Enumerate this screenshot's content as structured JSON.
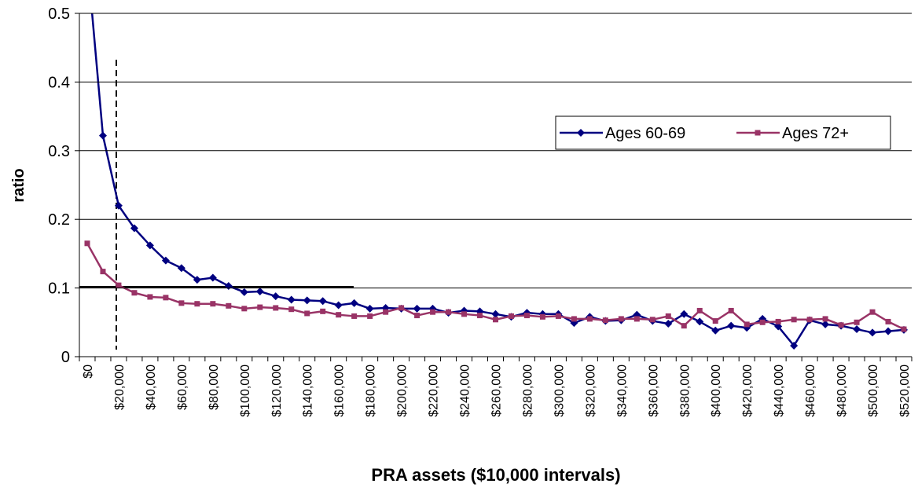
{
  "chart_data": {
    "type": "line",
    "xlabel": "PRA assets ($10,000 intervals)",
    "ylabel": "ratio",
    "categories": [
      "$0",
      null,
      "$20,000",
      null,
      "$40,000",
      null,
      "$60,000",
      null,
      "$80,000",
      null,
      "$100,000",
      null,
      "$120,000",
      null,
      "$140,000",
      null,
      "$160,000",
      null,
      "$180,000",
      null,
      "$200,000",
      null,
      "$220,000",
      null,
      "$240,000",
      null,
      "$260,000",
      null,
      "$280,000",
      null,
      "$300,000",
      null,
      "$320,000",
      null,
      "$340,000",
      null,
      "$360,000",
      null,
      "$380,000",
      null,
      "$400,000",
      null,
      "$420,000",
      null,
      "$440,000",
      null,
      "$460,000",
      null,
      "$480,000",
      null,
      "$500,000",
      null,
      "$520,000"
    ],
    "series": [
      {
        "name": "Ages 60-69",
        "color": "#000080",
        "marker": "diamond",
        "values": [
          0.58,
          0.322,
          0.22,
          0.187,
          0.162,
          0.14,
          0.129,
          0.112,
          0.115,
          0.103,
          0.094,
          0.095,
          0.088,
          0.083,
          0.082,
          0.081,
          0.075,
          0.078,
          0.07,
          0.071,
          0.07,
          0.07,
          0.07,
          0.064,
          0.067,
          0.066,
          0.062,
          0.058,
          0.064,
          0.062,
          0.062,
          0.049,
          0.058,
          0.052,
          0.053,
          0.061,
          0.052,
          0.048,
          0.062,
          0.051,
          0.038,
          0.045,
          0.042,
          0.055,
          0.044,
          0.016,
          0.053,
          0.047,
          0.045,
          0.04,
          0.035,
          0.037,
          0.039
        ]
      },
      {
        "name": "Ages 72+",
        "color": "#993366",
        "marker": "square",
        "values": [
          0.165,
          0.124,
          0.104,
          0.093,
          0.087,
          0.086,
          0.078,
          0.077,
          0.077,
          0.074,
          0.07,
          0.072,
          0.071,
          0.069,
          0.063,
          0.066,
          0.061,
          0.059,
          0.059,
          0.065,
          0.071,
          0.06,
          0.065,
          0.065,
          0.062,
          0.06,
          0.054,
          0.059,
          0.06,
          0.058,
          0.059,
          0.055,
          0.055,
          0.053,
          0.055,
          0.055,
          0.054,
          0.059,
          0.045,
          0.067,
          0.052,
          0.067,
          0.047,
          0.05,
          0.051,
          0.054,
          0.054,
          0.055,
          0.046,
          0.05,
          0.065,
          0.051,
          0.04
        ]
      }
    ],
    "ylim": [
      0,
      0.5
    ],
    "yticks": [
      0,
      0.1,
      0.2,
      0.3,
      0.4,
      0.5
    ],
    "grid": true,
    "legend": "upper right"
  }
}
